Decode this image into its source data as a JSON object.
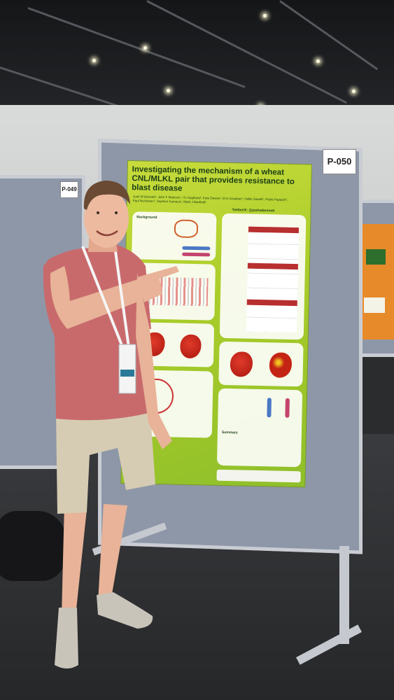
{
  "poster": {
    "board_label": "P-050",
    "neighbor_label": "P-049",
    "title": "Investigating the mechanism of a wheat CNL/MLKL pair that provides resistance to blast disease",
    "authors": "Josh W Bennett¹, John F Mahovic¹, Yu Sugihara², Kate Dowse¹, Erin Zavaliani¹, Hallie Sawell¹, Paula Pappani², Paul Nicholson¹, Sophien Kamoun¹, Mark J Banfield¹",
    "twitter": "Twitter/X: @joshwbennett",
    "background_heading": "Background",
    "findings_heading": "Summary"
  },
  "colors": {
    "poster_green": "#a9cc2a",
    "board_grey": "#8e97a8",
    "shirt": "#c86a6c"
  }
}
